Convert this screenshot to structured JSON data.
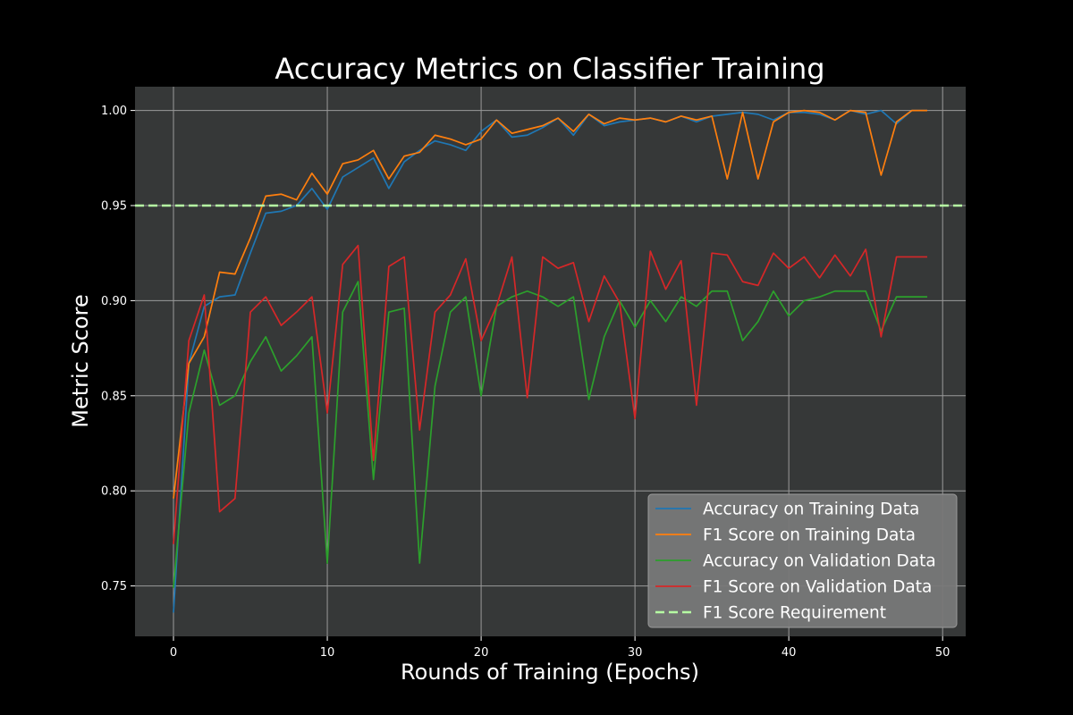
{
  "chart_data": {
    "type": "line",
    "title": "Accuracy Metrics on Classifier Training",
    "xlabel": "Rounds of Training (Epochs)",
    "ylabel": "Metric Score",
    "xlim": [
      -2.5,
      51.5
    ],
    "ylim": [
      0.7235,
      1.0125
    ],
    "x_ticks": [
      0,
      10,
      20,
      30,
      40,
      50
    ],
    "y_ticks": [
      0.75,
      0.8,
      0.85,
      0.9,
      0.95,
      1.0
    ],
    "x_tick_labels": [
      "0",
      "10",
      "20",
      "30",
      "40",
      "50"
    ],
    "y_tick_labels": [
      "0.75",
      "0.80",
      "0.85",
      "0.90",
      "0.95",
      "1.00"
    ],
    "grid": true,
    "legend_position": "lower-right",
    "x": [
      0,
      1,
      2,
      3,
      4,
      5,
      6,
      7,
      8,
      9,
      10,
      11,
      12,
      13,
      14,
      15,
      16,
      17,
      18,
      19,
      20,
      21,
      22,
      23,
      24,
      25,
      26,
      27,
      28,
      29,
      30,
      31,
      32,
      33,
      34,
      35,
      36,
      37,
      38,
      39,
      40,
      41,
      42,
      43,
      44,
      45,
      46,
      47,
      48,
      49
    ],
    "series": [
      {
        "name": "Accuracy on Training Data",
        "color": "#1f77b4",
        "dashed": false,
        "values": [
          0.736,
          0.867,
          0.897,
          0.902,
          0.903,
          0.925,
          0.946,
          0.947,
          0.95,
          0.959,
          0.948,
          0.965,
          0.97,
          0.975,
          0.959,
          0.973,
          0.979,
          0.984,
          0.982,
          0.979,
          0.989,
          0.995,
          0.986,
          0.987,
          0.991,
          0.996,
          0.987,
          0.998,
          0.992,
          0.994,
          0.995,
          0.996,
          0.994,
          0.997,
          0.994,
          0.997,
          0.998,
          0.999,
          0.998,
          0.995,
          0.999,
          0.999,
          0.998,
          0.995,
          1.0,
          0.998,
          1.0,
          0.993,
          1.0,
          1.0
        ]
      },
      {
        "name": "F1 Score on Training Data",
        "color": "#ff7f0e",
        "dashed": false,
        "values": [
          0.796,
          0.867,
          0.881,
          0.915,
          0.914,
          0.933,
          0.955,
          0.956,
          0.953,
          0.967,
          0.956,
          0.972,
          0.974,
          0.979,
          0.964,
          0.976,
          0.978,
          0.987,
          0.985,
          0.982,
          0.985,
          0.995,
          0.988,
          0.99,
          0.992,
          0.996,
          0.989,
          0.998,
          0.993,
          0.996,
          0.995,
          0.996,
          0.994,
          0.997,
          0.995,
          0.997,
          0.964,
          0.999,
          0.964,
          0.994,
          0.999,
          1.0,
          0.999,
          0.995,
          1.0,
          0.999,
          0.966,
          0.994,
          1.0,
          1.0
        ]
      },
      {
        "name": "Accuracy on Validation Data",
        "color": "#2ca02c",
        "dashed": false,
        "values": [
          0.749,
          0.841,
          0.874,
          0.845,
          0.85,
          0.868,
          0.881,
          0.863,
          0.871,
          0.881,
          0.762,
          0.894,
          0.91,
          0.806,
          0.894,
          0.896,
          0.762,
          0.855,
          0.894,
          0.902,
          0.85,
          0.897,
          0.902,
          0.905,
          0.902,
          0.897,
          0.902,
          0.848,
          0.881,
          0.9,
          0.886,
          0.9,
          0.889,
          0.902,
          0.897,
          0.905,
          0.905,
          0.879,
          0.889,
          0.905,
          0.892,
          0.9,
          0.902,
          0.905,
          0.905,
          0.905,
          0.884,
          0.902,
          0.902,
          0.902
        ]
      },
      {
        "name": "F1 Score on Validation Data",
        "color": "#d62728",
        "dashed": false,
        "values": [
          0.772,
          0.879,
          0.903,
          0.789,
          0.796,
          0.894,
          0.902,
          0.887,
          0.894,
          0.902,
          0.841,
          0.919,
          0.929,
          0.816,
          0.918,
          0.923,
          0.832,
          0.894,
          0.903,
          0.922,
          0.879,
          0.897,
          0.923,
          0.849,
          0.923,
          0.917,
          0.92,
          0.889,
          0.913,
          0.899,
          0.838,
          0.926,
          0.906,
          0.921,
          0.845,
          0.925,
          0.924,
          0.91,
          0.908,
          0.925,
          0.917,
          0.923,
          0.912,
          0.924,
          0.913,
          0.927,
          0.881,
          0.923,
          0.923,
          0.923
        ]
      },
      {
        "name": "F1 Score Requirement",
        "color": "#b6ffa3",
        "dashed": true,
        "hline": 0.95
      }
    ]
  },
  "colors": {
    "figure_background": "#000000",
    "plot_background": "#363838",
    "grid": "#9a9a9a",
    "text": "#ffffff",
    "legend_background": "#787878"
  }
}
